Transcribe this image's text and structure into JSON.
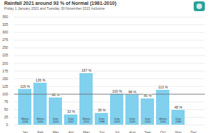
{
  "chart_data": {
    "type": "bar",
    "title": "Rainfall 2021 around 93 % of Normal (1981-2010)",
    "subtitle": "Friday 1 January 2021 and Tuesday 30 November 2021 inclusive",
    "categories": [
      "Jan",
      "Feb",
      "Mar",
      "Apr",
      "May",
      "Jun",
      "Jul",
      "Aug",
      "Sep",
      "Oct",
      "Nov",
      "Dec"
    ],
    "values": [
      116,
      136,
      88,
      33,
      167,
      38,
      100,
      98,
      85,
      113,
      48,
      null
    ],
    "value_labels": [
      "116 %",
      "136 %",
      "88 %",
      "33 %",
      "167 %",
      "38 %",
      "100 %",
      "98 %",
      "85 %",
      "113 %",
      "48 %",
      null
    ],
    "annotations": [
      "Wetter 2018",
      "Wetter 2020",
      "Drier 2020",
      "Drier 2017",
      "Wetter 2015",
      "Drier 1988",
      "Drier 2019",
      "Drier 2019",
      "Drier 2020",
      "Wetter 2020",
      "Drier 1983",
      null
    ],
    "normal": 100,
    "color": "#80d0ee",
    "ylim": [
      0,
      350
    ],
    "yticks": [
      0,
      25,
      50,
      75,
      100,
      125,
      150,
      175,
      200,
      225,
      250,
      275,
      300,
      325,
      350
    ],
    "grid": true,
    "data_labels": true
  }
}
